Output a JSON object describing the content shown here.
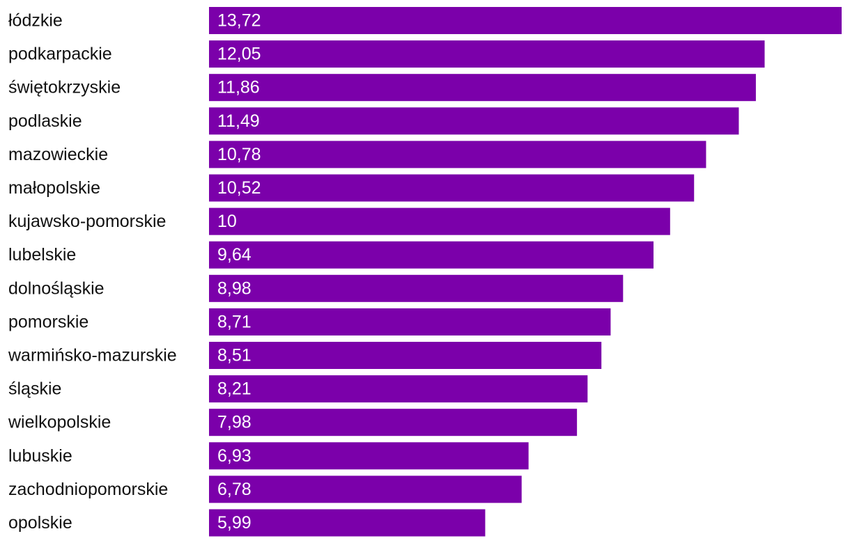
{
  "colors": {
    "bar": "#7b00aa",
    "label_text": "#111111",
    "value_text": "#ffffff",
    "background": "#ffffff"
  },
  "chart_data": {
    "type": "bar",
    "orientation": "horizontal",
    "grid": false,
    "legend": "none",
    "categories": [
      "łódzkie",
      "podkarpackie",
      "świętokrzyskie",
      "podlaskie",
      "mazowieckie",
      "małopolskie",
      "kujawsko-pomorskie",
      "lubelskie",
      "dolnośląskie",
      "pomorskie",
      "warmińsko-mazurskie",
      "śląskie",
      "wielkopolskie",
      "lubuskie",
      "zachodniopomorskie",
      "opolskie"
    ],
    "values": [
      13.72,
      12.05,
      11.86,
      11.49,
      10.78,
      10.52,
      10,
      9.64,
      8.98,
      8.71,
      8.51,
      8.21,
      7.98,
      6.93,
      6.78,
      5.99
    ],
    "value_labels": [
      "13,72",
      "12,05",
      "11,86",
      "11,49",
      "10,78",
      "10,52",
      "10",
      "9,64",
      "8,98",
      "8,71",
      "8,51",
      "8,21",
      "7,98",
      "6,93",
      "6,78",
      "5,99"
    ],
    "xlim": [
      0,
      13.72
    ]
  }
}
